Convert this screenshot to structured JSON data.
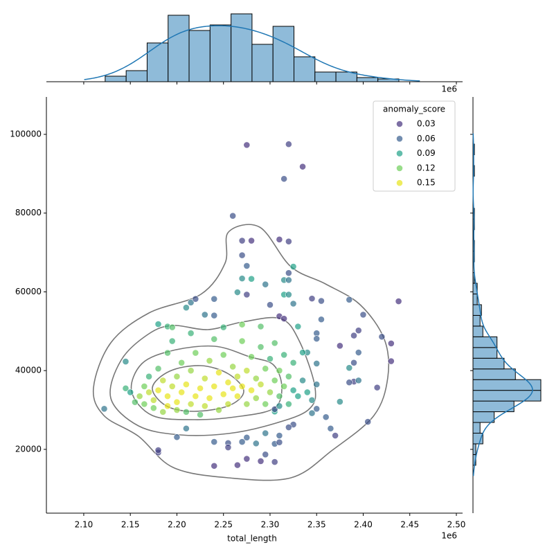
{
  "chart_data": {
    "type": "scatter",
    "xlabel": "total_length",
    "x_offset_label": "1e6",
    "xlim": [
      2059900,
      2506700
    ],
    "ylim": [
      3800,
      109500
    ],
    "xticks": [
      {
        "value": 2100000,
        "label": "2.10"
      },
      {
        "value": 2150000,
        "label": "2.15"
      },
      {
        "value": 2200000,
        "label": "2.20"
      },
      {
        "value": 2250000,
        "label": "2.25"
      },
      {
        "value": 2300000,
        "label": "2.30"
      },
      {
        "value": 2350000,
        "label": "2.35"
      },
      {
        "value": 2400000,
        "label": "2.40"
      },
      {
        "value": 2450000,
        "label": "2.45"
      },
      {
        "value": 2500000,
        "label": "2.50"
      }
    ],
    "yticks": [
      20000,
      40000,
      60000,
      80000,
      100000
    ],
    "legend": {
      "title": "anomaly_score",
      "corner": "upper right",
      "entries": [
        {
          "value": 0.03,
          "color": "#46327e"
        },
        {
          "value": 0.06,
          "color": "#365c8d"
        },
        {
          "value": 0.09,
          "color": "#1fa187"
        },
        {
          "value": 0.12,
          "color": "#6ece58"
        },
        {
          "value": 0.15,
          "color": "#e7e419"
        }
      ]
    },
    "x": [
      2275000,
      2320000,
      2335000,
      2315000,
      2260000,
      2270000,
      2280000,
      2310000,
      2320000,
      2270000,
      2275000,
      2325000,
      2320000,
      2270000,
      2280000,
      2315000,
      2320000,
      2295000,
      2265000,
      2275000,
      2315000,
      2320000,
      2215000,
      2220000,
      2240000,
      2345000,
      2355000,
      2385000,
      2438000,
      2300000,
      2325000,
      2210000,
      2400000,
      2230000,
      2240000,
      2310000,
      2315000,
      2355000,
      2180000,
      2190000,
      2330000,
      2270000,
      2290000,
      2375000,
      2395000,
      2390000,
      2420000,
      2430000,
      2430000,
      2390000,
      2415000,
      2405000,
      2370000,
      2365000,
      2360000,
      2325000,
      2320000,
      2290000,
      2305000,
      2275000,
      2265000,
      2240000,
      2180000,
      2180000,
      2122000,
      2145000,
      2210000,
      2200000,
      2240000,
      2255000,
      2255000,
      2270000,
      2285000,
      2305000,
      2310000,
      2310000,
      2295000,
      2275000,
      2295000,
      2390000,
      2385000,
      2395000,
      2385000,
      2395000,
      2375000,
      2350000,
      2350000,
      2350000,
      2340000,
      2335000,
      2305000,
      2305000,
      2310000,
      2345000,
      2350000,
      2145000,
      2150000,
      2155000,
      2160000,
      2165000,
      2165000,
      2170000,
      2170000,
      2175000,
      2175000,
      2180000,
      2180000,
      2185000,
      2185000,
      2190000,
      2190000,
      2190000,
      2195000,
      2195000,
      2200000,
      2200000,
      2200000,
      2205000,
      2205000,
      2210000,
      2210000,
      2215000,
      2215000,
      2220000,
      2220000,
      2225000,
      2225000,
      2230000,
      2230000,
      2235000,
      2235000,
      2240000,
      2240000,
      2245000,
      2245000,
      2250000,
      2250000,
      2255000,
      2255000,
      2260000,
      2260000,
      2265000,
      2265000,
      2270000,
      2270000,
      2275000,
      2275000,
      2280000,
      2280000,
      2285000,
      2285000,
      2290000,
      2290000,
      2295000,
      2295000,
      2300000,
      2300000,
      2305000,
      2305000,
      2310000,
      2310000,
      2315000,
      2315000,
      2320000,
      2320000,
      2325000,
      2325000,
      2330000,
      2335000,
      2340000,
      2345000,
      2350000,
      2215000,
      2195000,
      2250000
    ],
    "values": [
      97300,
      97500,
      91800,
      88700,
      79300,
      73000,
      73000,
      73300,
      72800,
      69300,
      66600,
      66400,
      64800,
      63400,
      63300,
      63000,
      63000,
      61900,
      59900,
      59300,
      59300,
      59300,
      57300,
      58200,
      58200,
      58300,
      57700,
      58000,
      57600,
      56700,
      57000,
      56000,
      54200,
      54200,
      54000,
      53800,
      53200,
      53000,
      51800,
      51200,
      51200,
      51700,
      51200,
      46300,
      50200,
      48900,
      48600,
      46900,
      42400,
      42000,
      35700,
      27000,
      23500,
      25300,
      28200,
      26300,
      25600,
      17000,
      16800,
      17600,
      16000,
      15800,
      19200,
      19800,
      30300,
      42300,
      25300,
      23100,
      21900,
      21600,
      20500,
      21900,
      21500,
      21400,
      21800,
      23500,
      24100,
      23000,
      18700,
      37200,
      37000,
      37500,
      40700,
      44600,
      32100,
      41800,
      49500,
      48100,
      44600,
      44600,
      29600,
      30200,
      31000,
      29200,
      30300,
      35500,
      34500,
      32000,
      33500,
      31500,
      36000,
      34500,
      38500,
      30500,
      32500,
      35000,
      40500,
      29500,
      37500,
      31000,
      33500,
      44500,
      36000,
      47500,
      30000,
      32000,
      38500,
      34500,
      42000,
      29500,
      36500,
      31500,
      40000,
      33500,
      44500,
      35500,
      28800,
      31000,
      38000,
      33000,
      42500,
      36000,
      48000,
      30000,
      39500,
      34000,
      44000,
      37000,
      31500,
      35500,
      41000,
      33500,
      38500,
      36000,
      47500,
      31500,
      40000,
      35000,
      43500,
      33000,
      38000,
      36500,
      46000,
      31500,
      40500,
      34500,
      43000,
      37500,
      47000,
      33500,
      40000,
      36000,
      44000,
      31500,
      38500,
      35000,
      42000,
      33500,
      37500,
      34500,
      32500,
      36500,
      49500,
      51000,
      51000
    ],
    "hue_values": [
      0.02,
      0.04,
      0.02,
      0.05,
      0.05,
      0.04,
      0.02,
      0.02,
      0.04,
      0.05,
      0.06,
      0.09,
      0.05,
      0.08,
      0.09,
      0.08,
      0.07,
      0.07,
      0.08,
      0.04,
      0.09,
      0.08,
      0.07,
      0.05,
      0.06,
      0.04,
      0.05,
      0.06,
      0.02,
      0.05,
      0.07,
      0.08,
      0.05,
      0.07,
      0.06,
      0.03,
      0.03,
      0.06,
      0.09,
      0.1,
      0.09,
      0.12,
      0.11,
      0.02,
      0.04,
      0.04,
      0.05,
      0.02,
      0.03,
      0.05,
      0.04,
      0.05,
      0.04,
      0.06,
      0.06,
      0.05,
      0.05,
      0.03,
      0.04,
      0.02,
      0.03,
      0.03,
      0.04,
      0.04,
      0.07,
      0.08,
      0.07,
      0.06,
      0.06,
      0.05,
      0.04,
      0.06,
      0.07,
      0.06,
      0.05,
      0.06,
      0.07,
      0.06,
      0.05,
      0.04,
      0.05,
      0.07,
      0.08,
      0.06,
      0.08,
      0.07,
      0.06,
      0.06,
      0.08,
      0.09,
      0.09,
      0.05,
      0.08,
      0.07,
      0.06,
      0.1,
      0.09,
      0.11,
      0.13,
      0.12,
      0.12,
      0.14,
      0.1,
      0.12,
      0.14,
      0.15,
      0.11,
      0.13,
      0.14,
      0.15,
      0.15,
      0.11,
      0.14,
      0.1,
      0.13,
      0.15,
      0.13,
      0.15,
      0.12,
      0.11,
      0.15,
      0.14,
      0.13,
      0.16,
      0.12,
      0.15,
      0.11,
      0.14,
      0.14,
      0.15,
      0.13,
      0.16,
      0.11,
      0.13,
      0.15,
      0.16,
      0.12,
      0.16,
      0.14,
      0.15,
      0.13,
      0.15,
      0.14,
      0.16,
      0.12,
      0.13,
      0.14,
      0.15,
      0.12,
      0.13,
      0.13,
      0.14,
      0.11,
      0.12,
      0.12,
      0.13,
      0.1,
      0.12,
      0.11,
      0.11,
      0.12,
      0.12,
      0.1,
      0.1,
      0.11,
      0.09,
      0.1,
      0.09,
      0.08,
      0.09,
      0.08,
      0.07,
      0.1,
      0.11,
      0.1
    ],
    "marginal_x": {
      "type": "histogram",
      "color": "#8fbbd9",
      "line_color": "#1f77b4",
      "bins": [
        2123000,
        2145520,
        2168040,
        2190560,
        2213080,
        2235600,
        2258120,
        2280640,
        2303160,
        2325680,
        2348200,
        2370720,
        2393240,
        2415760,
        2438280
      ],
      "counts": [
        4,
        8,
        28,
        48,
        37,
        41,
        49,
        27,
        40,
        18,
        7,
        7,
        3,
        2
      ]
    },
    "marginal_y": {
      "type": "histogram",
      "color": "#8fbbd9",
      "line_color": "#1f77b4",
      "bins": [
        15957,
        18676,
        21395,
        24114,
        26833,
        29552,
        32271,
        34990,
        37709,
        40428,
        43147,
        45866,
        48585,
        51304,
        54023,
        56742,
        59461,
        62180,
        64899,
        67618,
        70337,
        73056,
        75775,
        78494,
        81213,
        83932,
        86651,
        89370,
        92089,
        94808,
        97527
      ],
      "counts": [
        2,
        2,
        7,
        5,
        15,
        29,
        48,
        48,
        30,
        22,
        17,
        17,
        7,
        5,
        6,
        3,
        3,
        1,
        0,
        1,
        1,
        0,
        1,
        1,
        0,
        0,
        0,
        1,
        0,
        1
      ]
    }
  }
}
